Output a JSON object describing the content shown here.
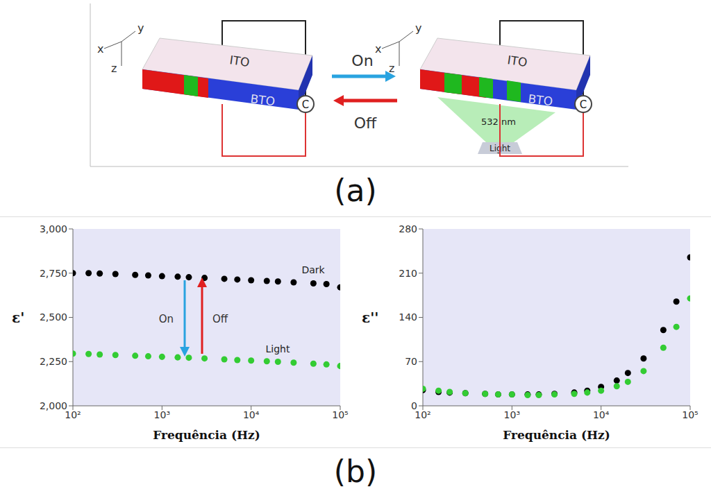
{
  "panel_labels": [
    "(a)",
    "(b)"
  ],
  "diagram": {
    "axes": [
      "x",
      "y",
      "z"
    ],
    "left": {
      "top_layer": "ITO",
      "substrate": "BTO",
      "meter": "C"
    },
    "arrows": [
      {
        "label": "On",
        "color": "#29a3e0"
      },
      {
        "label": "Off",
        "color": "#e02020"
      }
    ],
    "right": {
      "top_layer": "ITO",
      "substrate": "BTO",
      "meter": "C",
      "wavelength": "532 nm",
      "source": "Light"
    }
  },
  "chart_data": [
    {
      "type": "scatter",
      "x_label": "Frequência (Hz)",
      "y_label": "ε'",
      "log": "x",
      "grid": false,
      "marker": "circle",
      "xlim": [
        100,
        100000
      ],
      "xticks": [
        {
          "value": 100,
          "label": "10²"
        },
        {
          "value": 1000,
          "label": "10³"
        },
        {
          "value": 10000,
          "label": "10⁴"
        },
        {
          "value": 100000,
          "label": "10⁵"
        }
      ],
      "ylim": [
        2000,
        3000
      ],
      "yticks": [
        {
          "value": 2000,
          "label": "2,000"
        },
        {
          "value": 2250,
          "label": "2,250"
        },
        {
          "value": 2500,
          "label": "2,500"
        },
        {
          "value": 2750,
          "label": "2,750"
        },
        {
          "value": 3000,
          "label": "3,000"
        }
      ],
      "x": [
        100,
        150,
        200,
        300,
        500,
        700,
        1000,
        1500,
        2000,
        3000,
        5000,
        7000,
        10000,
        15000,
        20000,
        30000,
        50000,
        70000,
        100000
      ],
      "series": [
        {
          "name": "Dark",
          "color": "#000000",
          "values": [
            2750,
            2750,
            2748,
            2745,
            2740,
            2737,
            2733,
            2730,
            2727,
            2723,
            2718,
            2714,
            2710,
            2706,
            2703,
            2698,
            2692,
            2688,
            2670
          ]
        },
        {
          "name": "Light",
          "color": "#33cc33",
          "values": [
            2295,
            2293,
            2290,
            2287,
            2283,
            2280,
            2277,
            2274,
            2272,
            2268,
            2263,
            2259,
            2256,
            2252,
            2249,
            2244,
            2238,
            2234,
            2225
          ]
        }
      ],
      "annotations": [
        {
          "text": "On",
          "color": "#29a3e0"
        },
        {
          "text": "Off",
          "color": "#e02020"
        }
      ]
    },
    {
      "type": "scatter",
      "x_label": "Frequência (Hz)",
      "y_label": "ε''",
      "log": "x",
      "grid": false,
      "marker": "circle",
      "xlim": [
        100,
        100000
      ],
      "xticks": [
        {
          "value": 100,
          "label": "10²"
        },
        {
          "value": 1000,
          "label": "10³"
        },
        {
          "value": 10000,
          "label": "10⁴"
        },
        {
          "value": 100000,
          "label": "10⁵"
        }
      ],
      "ylim": [
        0,
        280
      ],
      "yticks": [
        0,
        70,
        140,
        210,
        280
      ],
      "x": [
        100,
        150,
        200,
        300,
        500,
        700,
        1000,
        1500,
        2000,
        3000,
        5000,
        7000,
        10000,
        15000,
        20000,
        30000,
        50000,
        70000,
        100000
      ],
      "series": [
        {
          "color": "#000000",
          "values": [
            25,
            22,
            21,
            20,
            19,
            18,
            18,
            18,
            18,
            19,
            21,
            24,
            30,
            40,
            52,
            75,
            120,
            165,
            235
          ]
        },
        {
          "color": "#33cc33",
          "values": [
            27,
            24,
            22,
            20,
            19,
            18,
            18,
            17,
            17,
            18,
            19,
            21,
            24,
            31,
            38,
            55,
            92,
            125,
            170
          ]
        }
      ]
    }
  ]
}
